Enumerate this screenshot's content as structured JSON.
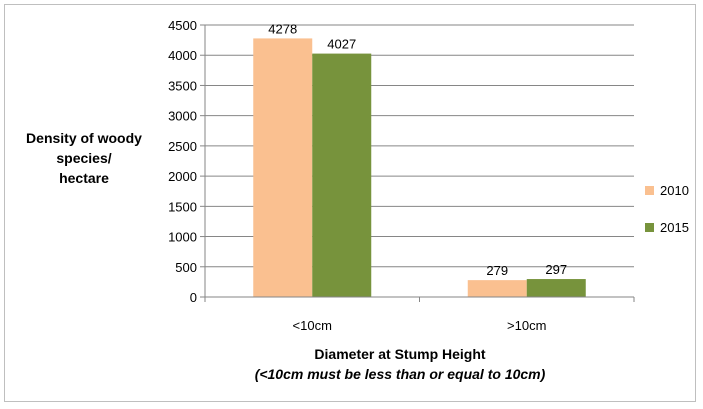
{
  "chart_data": {
    "type": "bar",
    "categories": [
      "<10cm",
      ">10cm"
    ],
    "series": [
      {
        "name": "2010",
        "values": [
          4278,
          279
        ],
        "color": "#FAC090"
      },
      {
        "name": "2015",
        "values": [
          4027,
          297
        ],
        "color": "#77933C"
      }
    ],
    "ylabel_lines": [
      "Density of woody",
      "species/",
      "hectare"
    ],
    "xlabel": "Diameter at Stump Height",
    "xlabel_note": "(<10cm must be less than or equal to 10cm)",
    "ylim": [
      0,
      4500
    ],
    "yticks": [
      0,
      500,
      1000,
      1500,
      2000,
      2500,
      3000,
      3500,
      4000,
      4500
    ],
    "grid": true,
    "legend_position": "right"
  }
}
